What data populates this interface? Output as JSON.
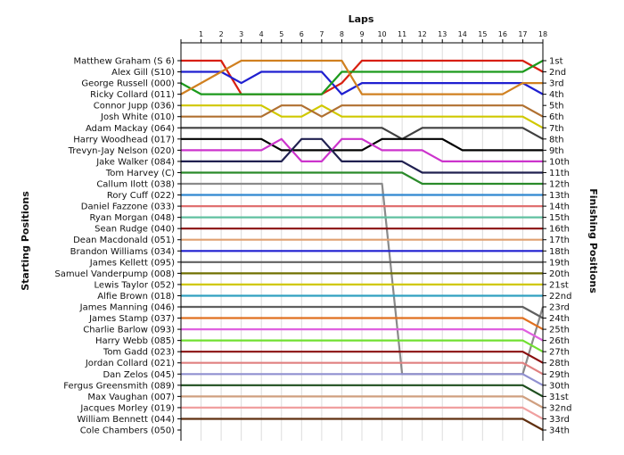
{
  "chart_data": {
    "type": "line",
    "title": "",
    "top_axis_label": "Laps",
    "left_axis_label": "Starting Positions",
    "right_axis_label": "Finishing Positions",
    "laps": [
      0,
      1,
      2,
      3,
      4,
      5,
      6,
      7,
      8,
      9,
      10,
      11,
      12,
      13,
      14,
      15,
      16,
      17,
      18
    ],
    "lap_tick_labels": [
      "1",
      "2",
      "3",
      "4",
      "5",
      "6",
      "7",
      "8",
      "9",
      "10",
      "11",
      "12",
      "13",
      "14",
      "15",
      "16",
      "17",
      "18"
    ],
    "starting_labels": [
      "Matthew Graham (S 6)",
      "Alex Gill (S10)",
      "George Russell (000)",
      "Ricky Collard (011)",
      "Connor Jupp (036)",
      "Josh White (010)",
      "Adam Mackay (064)",
      "Harry Woodhead (017)",
      "Trevyn-Jay Nelson (020)",
      "Jake Walker (084)",
      "Tom Harvey (C)",
      "Callum Ilott (038)",
      "Rory Cuff (022)",
      "Daniel Fazzone (033)",
      "Ryan Morgan (048)",
      "Sean Rudge (040)",
      "Dean Macdonald (051)",
      "Brandon Williams (034)",
      "James Kellett (095)",
      "Samuel Vanderpump (008)",
      "Lewis Taylor (052)",
      "Alfie Brown (018)",
      "James Manning (046)",
      "James Stamp (037)",
      "Charlie Barlow (093)",
      "Harry Webb (085)",
      "Tom Gadd (023)",
      "Jordan Collard (021)",
      "Dan Zelos (045)",
      "Fergus Greensmith (089)",
      "Max Vaughan (007)",
      "Jacques Morley (019)",
      "William Bennett (044)",
      "Cole Chambers (050)"
    ],
    "finishing_labels": [
      "1st",
      "2nd",
      "3rd",
      "4th",
      "5th",
      "6th",
      "7th",
      "8th",
      "9th",
      "10th",
      "11th",
      "12th",
      "13th",
      "14th",
      "15th",
      "16th",
      "17th",
      "18th",
      "19th",
      "20th",
      "21st",
      "22nd",
      "23rd",
      "24th",
      "25th",
      "26th",
      "27th",
      "28th",
      "29th",
      "30th",
      "31st",
      "32nd",
      "33rd",
      "34th"
    ],
    "grid": true,
    "colors": [
      "#d81f10",
      "#1f1fd0",
      "#1c9a1c",
      "#d08020",
      "#d0c800",
      "#b07030",
      "#404040",
      "#000000",
      "#cc33cc",
      "#202050",
      "#2a8a2a",
      "#8a8a8a",
      "#3088d0",
      "#e07070",
      "#60c0a0",
      "#8a1010",
      "#e0a070",
      "#1f1fd0",
      "#606060",
      "#707000",
      "#d0c800",
      "#30a0c0",
      "#606060",
      "#e07020",
      "#e060e0",
      "#70e030",
      "#8a1010",
      "#e08080",
      "#9090d0",
      "#1f4f1f",
      "#d0a080",
      "#f0a0a0",
      "#603010",
      "#ffffff"
    ],
    "series": [
      {
        "name": "Matthew Graham (S 6)",
        "positions": [
          1,
          1,
          1,
          4,
          4,
          4,
          4,
          4,
          3,
          1,
          1,
          1,
          1,
          1,
          1,
          1,
          1,
          1,
          2
        ]
      },
      {
        "name": "Alex Gill (S10)",
        "positions": [
          2,
          2,
          2,
          3,
          2,
          2,
          2,
          2,
          4,
          3,
          3,
          3,
          3,
          3,
          3,
          3,
          3,
          3,
          4
        ]
      },
      {
        "name": "George Russell (000)",
        "positions": [
          3,
          4,
          4,
          4,
          4,
          4,
          4,
          4,
          2,
          2,
          2,
          2,
          2,
          2,
          2,
          2,
          2,
          2,
          1
        ]
      },
      {
        "name": "Ricky Collard (011)",
        "positions": [
          4,
          3,
          2,
          1,
          1,
          1,
          1,
          1,
          1,
          4,
          4,
          4,
          4,
          4,
          4,
          4,
          4,
          3,
          3
        ]
      },
      {
        "name": "Connor Jupp (036)",
        "positions": [
          5,
          5,
          5,
          5,
          5,
          6,
          6,
          5,
          6,
          6,
          6,
          6,
          6,
          6,
          6,
          6,
          6,
          6,
          7
        ]
      },
      {
        "name": "Josh White (010)",
        "positions": [
          6,
          6,
          6,
          6,
          6,
          5,
          5,
          6,
          5,
          5,
          5,
          5,
          5,
          5,
          5,
          5,
          5,
          5,
          6
        ]
      },
      {
        "name": "Adam Mackay (064)",
        "positions": [
          7,
          7,
          7,
          7,
          7,
          7,
          7,
          7,
          7,
          7,
          7,
          8,
          7,
          7,
          7,
          7,
          7,
          7,
          8
        ]
      },
      {
        "name": "Harry Woodhead (017)",
        "positions": [
          8,
          8,
          8,
          8,
          8,
          9,
          9,
          9,
          9,
          9,
          8,
          8,
          8,
          8,
          9,
          9,
          9,
          9,
          9
        ]
      },
      {
        "name": "Trevyn-Jay Nelson (020)",
        "positions": [
          9,
          9,
          9,
          9,
          9,
          8,
          10,
          10,
          8,
          8,
          9,
          9,
          9,
          10,
          10,
          10,
          10,
          10,
          10
        ]
      },
      {
        "name": "Jake Walker (084)",
        "positions": [
          10,
          10,
          10,
          10,
          10,
          10,
          8,
          8,
          10,
          10,
          10,
          10,
          11,
          11,
          11,
          11,
          11,
          11,
          11
        ]
      },
      {
        "name": "Tom Harvey (C)",
        "positions": [
          11,
          11,
          11,
          11,
          11,
          11,
          11,
          11,
          11,
          11,
          11,
          11,
          12,
          12,
          12,
          12,
          12,
          12,
          12
        ]
      },
      {
        "name": "Callum Ilott (038)",
        "positions": [
          12,
          12,
          12,
          12,
          12,
          12,
          12,
          12,
          12,
          12,
          12,
          29,
          29,
          29,
          29,
          29,
          29,
          29,
          23
        ]
      },
      {
        "name": "Rory Cuff (022)",
        "positions": [
          13,
          13,
          13,
          13,
          13,
          13,
          13,
          13,
          13,
          13,
          13,
          13,
          13,
          13,
          13,
          13,
          13,
          13,
          13
        ]
      },
      {
        "name": "Daniel Fazzone (033)",
        "positions": [
          14,
          14,
          14,
          14,
          14,
          14,
          14,
          14,
          14,
          14,
          14,
          14,
          14,
          14,
          14,
          14,
          14,
          14,
          14
        ]
      },
      {
        "name": "Ryan Morgan (048)",
        "positions": [
          15,
          15,
          15,
          15,
          15,
          15,
          15,
          15,
          15,
          15,
          15,
          15,
          15,
          15,
          15,
          15,
          15,
          15,
          15
        ]
      },
      {
        "name": "Sean Rudge (040)",
        "positions": [
          16,
          16,
          16,
          16,
          16,
          16,
          16,
          16,
          16,
          16,
          16,
          16,
          16,
          16,
          16,
          16,
          16,
          16,
          16
        ]
      },
      {
        "name": "Dean Macdonald (051)",
        "positions": [
          17,
          17,
          17,
          17,
          17,
          17,
          17,
          17,
          17,
          17,
          17,
          17,
          17,
          17,
          17,
          17,
          17,
          17,
          17
        ]
      },
      {
        "name": "Brandon Williams (034)",
        "positions": [
          18,
          18,
          18,
          18,
          18,
          18,
          18,
          18,
          18,
          18,
          18,
          18,
          18,
          18,
          18,
          18,
          18,
          18,
          18
        ]
      },
      {
        "name": "James Kellett (095)",
        "positions": [
          19,
          19,
          19,
          19,
          19,
          19,
          19,
          19,
          19,
          19,
          19,
          19,
          19,
          19,
          19,
          19,
          19,
          19,
          19
        ]
      },
      {
        "name": "Samuel Vanderpump (008)",
        "positions": [
          20,
          20,
          20,
          20,
          20,
          20,
          20,
          20,
          20,
          20,
          20,
          20,
          20,
          20,
          20,
          20,
          20,
          20,
          20
        ]
      },
      {
        "name": "Lewis Taylor (052)",
        "positions": [
          21,
          21,
          21,
          21,
          21,
          21,
          21,
          21,
          21,
          21,
          21,
          21,
          21,
          21,
          21,
          21,
          21,
          21,
          21
        ]
      },
      {
        "name": "Alfie Brown (018)",
        "positions": [
          22,
          22,
          22,
          22,
          22,
          22,
          22,
          22,
          22,
          22,
          22,
          22,
          22,
          22,
          22,
          22,
          22,
          22,
          22
        ]
      },
      {
        "name": "James Manning (046)",
        "positions": [
          23,
          23,
          23,
          23,
          23,
          23,
          23,
          23,
          23,
          23,
          23,
          23,
          23,
          23,
          23,
          23,
          23,
          23,
          24
        ]
      },
      {
        "name": "James Stamp (037)",
        "positions": [
          24,
          24,
          24,
          24,
          24,
          24,
          24,
          24,
          24,
          24,
          24,
          24,
          24,
          24,
          24,
          24,
          24,
          24,
          25
        ]
      },
      {
        "name": "Charlie Barlow (093)",
        "positions": [
          25,
          25,
          25,
          25,
          25,
          25,
          25,
          25,
          25,
          25,
          25,
          25,
          25,
          25,
          25,
          25,
          25,
          25,
          26
        ]
      },
      {
        "name": "Harry Webb (085)",
        "positions": [
          26,
          26,
          26,
          26,
          26,
          26,
          26,
          26,
          26,
          26,
          26,
          26,
          26,
          26,
          26,
          26,
          26,
          26,
          27
        ]
      },
      {
        "name": "Tom Gadd (023)",
        "positions": [
          27,
          27,
          27,
          27,
          27,
          27,
          27,
          27,
          27,
          27,
          27,
          27,
          27,
          27,
          27,
          27,
          27,
          27,
          28
        ]
      },
      {
        "name": "Jordan Collard (021)",
        "positions": [
          28,
          28,
          28,
          28,
          28,
          28,
          28,
          28,
          28,
          28,
          28,
          28,
          28,
          28,
          28,
          28,
          28,
          28,
          29
        ]
      },
      {
        "name": "Dan Zelos (045)",
        "positions": [
          29,
          29,
          29,
          29,
          29,
          29,
          29,
          29,
          29,
          29,
          29,
          29,
          29,
          29,
          29,
          29,
          29,
          29,
          30
        ]
      },
      {
        "name": "Fergus Greensmith (089)",
        "positions": [
          30,
          30,
          30,
          30,
          30,
          30,
          30,
          30,
          30,
          30,
          30,
          30,
          30,
          30,
          30,
          30,
          30,
          30,
          31
        ]
      },
      {
        "name": "Max Vaughan (007)",
        "positions": [
          31,
          31,
          31,
          31,
          31,
          31,
          31,
          31,
          31,
          31,
          31,
          31,
          31,
          31,
          31,
          31,
          31,
          31,
          32
        ]
      },
      {
        "name": "Jacques Morley (019)",
        "positions": [
          32,
          32,
          32,
          32,
          32,
          32,
          32,
          32,
          32,
          32,
          32,
          32,
          32,
          32,
          32,
          32,
          32,
          32,
          33
        ]
      },
      {
        "name": "William Bennett (044)",
        "positions": [
          33,
          33,
          33,
          33,
          33,
          33,
          33,
          33,
          33,
          33,
          33,
          33,
          33,
          33,
          33,
          33,
          33,
          33,
          34
        ]
      },
      {
        "name": "Cole Chambers (050)",
        "positions": [
          34
        ]
      }
    ]
  }
}
